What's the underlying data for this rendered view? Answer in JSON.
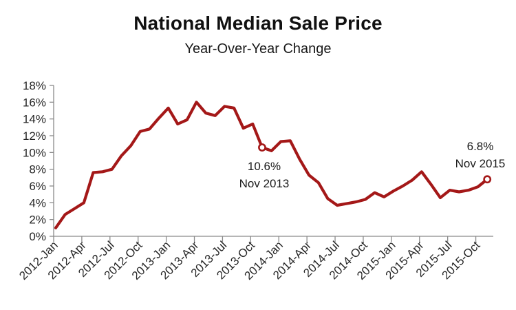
{
  "header": {
    "title": "National Median Sale Price",
    "subtitle": "Year-Over-Year Change"
  },
  "chart_data": {
    "type": "line",
    "title": "National Median Sale Price",
    "subtitle": "Year-Over-Year Change",
    "x": [
      "2012-Jan",
      "2012-Feb",
      "2012-Mar",
      "2012-Apr",
      "2012-May",
      "2012-Jun",
      "2012-Jul",
      "2012-Aug",
      "2012-Sep",
      "2012-Oct",
      "2012-Nov",
      "2012-Dec",
      "2013-Jan",
      "2013-Feb",
      "2013-Mar",
      "2013-Apr",
      "2013-May",
      "2013-Jun",
      "2013-Jul",
      "2013-Aug",
      "2013-Sep",
      "2013-Oct",
      "2013-Nov",
      "2013-Dec",
      "2014-Jan",
      "2014-Feb",
      "2014-Mar",
      "2014-Apr",
      "2014-May",
      "2014-Jun",
      "2014-Jul",
      "2014-Aug",
      "2014-Sep",
      "2014-Oct",
      "2014-Nov",
      "2014-Dec",
      "2015-Jan",
      "2015-Feb",
      "2015-Mar",
      "2015-Apr",
      "2015-May",
      "2015-Jun",
      "2015-Jul",
      "2015-Aug",
      "2015-Sep",
      "2015-Oct",
      "2015-Nov"
    ],
    "values": [
      1.0,
      2.6,
      3.3,
      4.0,
      7.6,
      7.7,
      8.0,
      9.6,
      10.8,
      12.5,
      12.8,
      14.1,
      15.3,
      13.4,
      13.9,
      16.0,
      14.7,
      14.4,
      15.5,
      15.3,
      12.9,
      13.4,
      10.6,
      10.2,
      11.3,
      11.4,
      9.2,
      7.3,
      6.4,
      4.5,
      3.7,
      3.9,
      4.1,
      4.4,
      5.2,
      4.7,
      5.4,
      6.0,
      6.7,
      7.7,
      6.2,
      4.6,
      5.5,
      5.3,
      5.5,
      5.9,
      6.8
    ],
    "x_tick_labels": [
      "2012-Jan",
      "2012-Apr",
      "2012-Jul",
      "2012-Oct",
      "2013-Jan",
      "2013-Apr",
      "2013-Jul",
      "2013-Oct",
      "2014-Jan",
      "2014-Apr",
      "2014-Jul",
      "2014-Oct",
      "2015-Jan",
      "2015-Apr",
      "2015-Jul",
      "2015-Oct"
    ],
    "x_tick_every": 3,
    "y_tick_labels": [
      "0%",
      "2%",
      "4%",
      "6%",
      "8%",
      "10%",
      "12%",
      "14%",
      "16%",
      "18%"
    ],
    "y_ticks": [
      0,
      2,
      4,
      6,
      8,
      10,
      12,
      14,
      16,
      18
    ],
    "ylim": [
      0,
      18
    ],
    "xlabel": "",
    "ylabel": "",
    "grid": false,
    "legend": "none",
    "line_color": "#A41818",
    "marker_fill": "#ffffff",
    "axis_color": "#8a8a8a",
    "label_color": "#262626",
    "annotations": [
      {
        "index": 22,
        "value_label": "10.6%",
        "date_label": "Nov 2013"
      },
      {
        "index": 46,
        "value_label": "6.8%",
        "date_label": "Nov 2015"
      }
    ]
  }
}
